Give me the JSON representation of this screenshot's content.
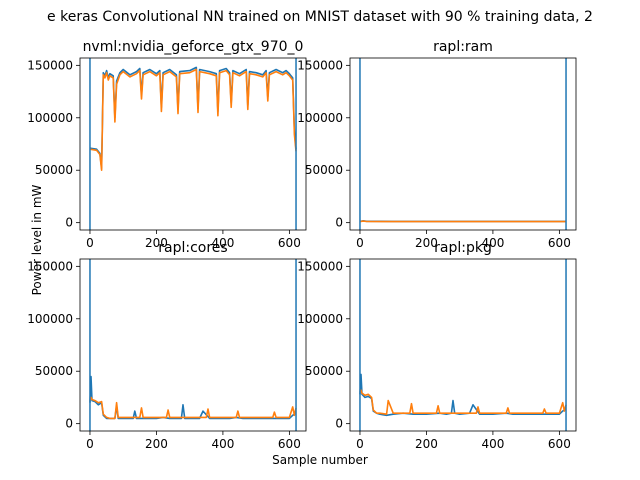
{
  "figure": {
    "title": "e keras Convolutional NN trained on MNIST dataset with 90 % training data, 2",
    "xlabel": "Sample number",
    "ylabel": "Power level in mW",
    "colors": {
      "series_a": "#1f77b4",
      "series_b": "#ff7f0e",
      "vline": "#1f77b4"
    }
  },
  "chart_data": [
    {
      "type": "line",
      "title": "nvml:nvidia_geforce_gtx_970_0",
      "xlim": [
        -30,
        650
      ],
      "ylim": [
        -7000,
        157000
      ],
      "xticks": [
        0,
        200,
        400,
        600
      ],
      "xtick_labels": [
        "0",
        "200",
        "400",
        "600"
      ],
      "yticks": [
        0,
        50000,
        100000,
        150000
      ],
      "ytick_labels": [
        "0",
        "50000",
        "100000",
        "150000"
      ],
      "vlines": [
        0,
        620
      ],
      "series": [
        {
          "x": [
            0,
            20,
            30,
            35,
            40,
            45,
            50,
            55,
            60,
            70,
            75,
            80,
            90,
            100,
            120,
            140,
            150,
            155,
            160,
            180,
            200,
            210,
            215,
            220,
            240,
            260,
            265,
            270,
            300,
            320,
            325,
            330,
            360,
            380,
            385,
            390,
            410,
            420,
            425,
            430,
            450,
            470,
            475,
            480,
            500,
            520,
            530,
            535,
            540,
            560,
            580,
            590,
            600,
            605,
            610,
            615,
            620
          ],
          "y": [
            71000,
            70000,
            66000,
            52000,
            143000,
            140000,
            145000,
            138000,
            142000,
            140000,
            100000,
            135000,
            143000,
            146000,
            141000,
            144000,
            147000,
            122000,
            143000,
            146000,
            142000,
            145000,
            110000,
            143000,
            146000,
            141000,
            108000,
            144000,
            145000,
            148000,
            109000,
            146000,
            144000,
            142000,
            106000,
            145000,
            147000,
            143000,
            114000,
            145000,
            142000,
            146000,
            112000,
            144000,
            143000,
            141000,
            145000,
            120000,
            143000,
            146000,
            143000,
            145000,
            142000,
            140000,
            138000,
            88000,
            70000
          ]
        },
        {
          "x": [
            0,
            20,
            30,
            35,
            40,
            45,
            50,
            55,
            60,
            70,
            75,
            80,
            90,
            100,
            120,
            140,
            150,
            155,
            160,
            180,
            200,
            210,
            215,
            220,
            240,
            260,
            265,
            270,
            300,
            320,
            325,
            330,
            360,
            380,
            385,
            390,
            410,
            420,
            425,
            430,
            450,
            470,
            475,
            480,
            500,
            520,
            530,
            535,
            540,
            560,
            580,
            590,
            600,
            605,
            610,
            615,
            620
          ],
          "y": [
            70000,
            69000,
            65000,
            50000,
            141000,
            138000,
            143000,
            136000,
            140000,
            138000,
            96000,
            132000,
            141000,
            144000,
            139000,
            142000,
            145000,
            118000,
            141000,
            144000,
            140000,
            143000,
            106000,
            141000,
            144000,
            139000,
            104000,
            142000,
            143000,
            146000,
            105000,
            144000,
            142000,
            140000,
            102000,
            143000,
            145000,
            141000,
            110000,
            143000,
            140000,
            144000,
            108000,
            142000,
            141000,
            139000,
            143000,
            116000,
            141000,
            144000,
            141000,
            143000,
            140000,
            138000,
            136000,
            84000,
            68000
          ]
        }
      ]
    },
    {
      "type": "line",
      "title": "rapl:ram",
      "xlim": [
        -30,
        650
      ],
      "ylim": [
        -7000,
        157000
      ],
      "xticks": [
        0,
        200,
        400,
        600
      ],
      "xtick_labels": [
        "0",
        "200",
        "400",
        "600"
      ],
      "yticks": [
        0,
        50000,
        100000,
        150000
      ],
      "ytick_labels": [
        "0",
        "50000",
        "100000",
        "150000"
      ],
      "vlines": [
        0,
        620
      ],
      "series": [
        {
          "x": [
            0,
            10,
            20,
            100,
            200,
            300,
            400,
            500,
            600,
            620
          ],
          "y": [
            1200,
            1800,
            1300,
            1200,
            1200,
            1200,
            1200,
            1200,
            1200,
            1200
          ]
        },
        {
          "x": [
            0,
            10,
            20,
            100,
            200,
            300,
            400,
            500,
            600,
            620
          ],
          "y": [
            1000,
            1500,
            1100,
            1000,
            1000,
            1000,
            1000,
            1000,
            1000,
            1000
          ]
        }
      ]
    },
    {
      "type": "line",
      "title": "rapl:cores",
      "xlim": [
        -30,
        650
      ],
      "ylim": [
        -7000,
        157000
      ],
      "xticks": [
        0,
        200,
        400,
        600
      ],
      "xtick_labels": [
        "0",
        "200",
        "400",
        "600"
      ],
      "yticks": [
        0,
        50000,
        100000,
        150000
      ],
      "ytick_labels": [
        "0",
        "50000",
        "100000",
        "150000"
      ],
      "vlines": [
        0,
        620
      ],
      "series": [
        {
          "x": [
            0,
            3,
            6,
            15,
            25,
            35,
            40,
            50,
            60,
            75,
            80,
            85,
            100,
            130,
            135,
            140,
            160,
            200,
            220,
            240,
            260,
            275,
            280,
            285,
            300,
            330,
            340,
            360,
            400,
            420,
            440,
            460,
            500,
            530,
            560,
            580,
            600,
            610,
            620
          ],
          "y": [
            20000,
            45000,
            22000,
            21000,
            18000,
            20000,
            8000,
            5000,
            5000,
            5000,
            17000,
            5000,
            5000,
            5000,
            12000,
            5000,
            5000,
            5000,
            6000,
            5000,
            5000,
            5000,
            18000,
            5000,
            5000,
            5000,
            12000,
            5000,
            5000,
            5000,
            6000,
            5000,
            5000,
            5000,
            5000,
            5000,
            5000,
            8000,
            10000
          ]
        },
        {
          "x": [
            0,
            3,
            6,
            15,
            25,
            35,
            40,
            50,
            60,
            75,
            80,
            85,
            100,
            150,
            155,
            160,
            200,
            230,
            235,
            240,
            300,
            350,
            355,
            360,
            400,
            440,
            445,
            450,
            500,
            550,
            555,
            560,
            600,
            610,
            615,
            620
          ],
          "y": [
            22000,
            25000,
            23000,
            22000,
            20000,
            21000,
            9000,
            6000,
            5000,
            5000,
            20000,
            6000,
            6000,
            6000,
            15000,
            6000,
            6000,
            6000,
            13000,
            6000,
            6000,
            6000,
            14000,
            6000,
            6000,
            6000,
            12000,
            6000,
            6000,
            6000,
            11000,
            6000,
            6000,
            16000,
            8000,
            15000
          ]
        }
      ]
    },
    {
      "type": "line",
      "title": "rapl:pkg",
      "xlim": [
        -30,
        650
      ],
      "ylim": [
        -7000,
        157000
      ],
      "xticks": [
        0,
        200,
        400,
        600
      ],
      "xtick_labels": [
        "0",
        "200",
        "400",
        "600"
      ],
      "yticks": [
        0,
        50000,
        100000,
        150000
      ],
      "ytick_labels": [
        "0",
        "50000",
        "100000",
        "150000"
      ],
      "vlines": [
        0,
        620
      ],
      "series": [
        {
          "x": [
            0,
            3,
            6,
            15,
            25,
            35,
            40,
            50,
            60,
            80,
            100,
            130,
            160,
            200,
            240,
            260,
            275,
            280,
            285,
            300,
            330,
            340,
            360,
            400,
            440,
            460,
            500,
            560,
            600,
            610,
            620
          ],
          "y": [
            28000,
            47000,
            28000,
            25000,
            26000,
            24000,
            12000,
            10000,
            9000,
            8000,
            9000,
            10000,
            9000,
            9000,
            10000,
            9000,
            10000,
            22000,
            10000,
            9000,
            10000,
            18000,
            9000,
            9000,
            10000,
            9000,
            9000,
            9000,
            9000,
            12000,
            14000
          ]
        },
        {
          "x": [
            0,
            3,
            6,
            15,
            25,
            35,
            40,
            50,
            60,
            80,
            85,
            100,
            150,
            155,
            160,
            200,
            230,
            235,
            240,
            300,
            350,
            355,
            360,
            400,
            440,
            445,
            450,
            500,
            550,
            555,
            560,
            600,
            610,
            615,
            620
          ],
          "y": [
            30000,
            32000,
            29000,
            27000,
            28000,
            25000,
            13000,
            10000,
            10000,
            9000,
            22000,
            10000,
            10000,
            19000,
            10000,
            10000,
            10000,
            17000,
            10000,
            10000,
            10000,
            16000,
            10000,
            10000,
            10000,
            15000,
            10000,
            10000,
            10000,
            14000,
            10000,
            10000,
            20000,
            12000,
            18000
          ]
        }
      ]
    }
  ]
}
